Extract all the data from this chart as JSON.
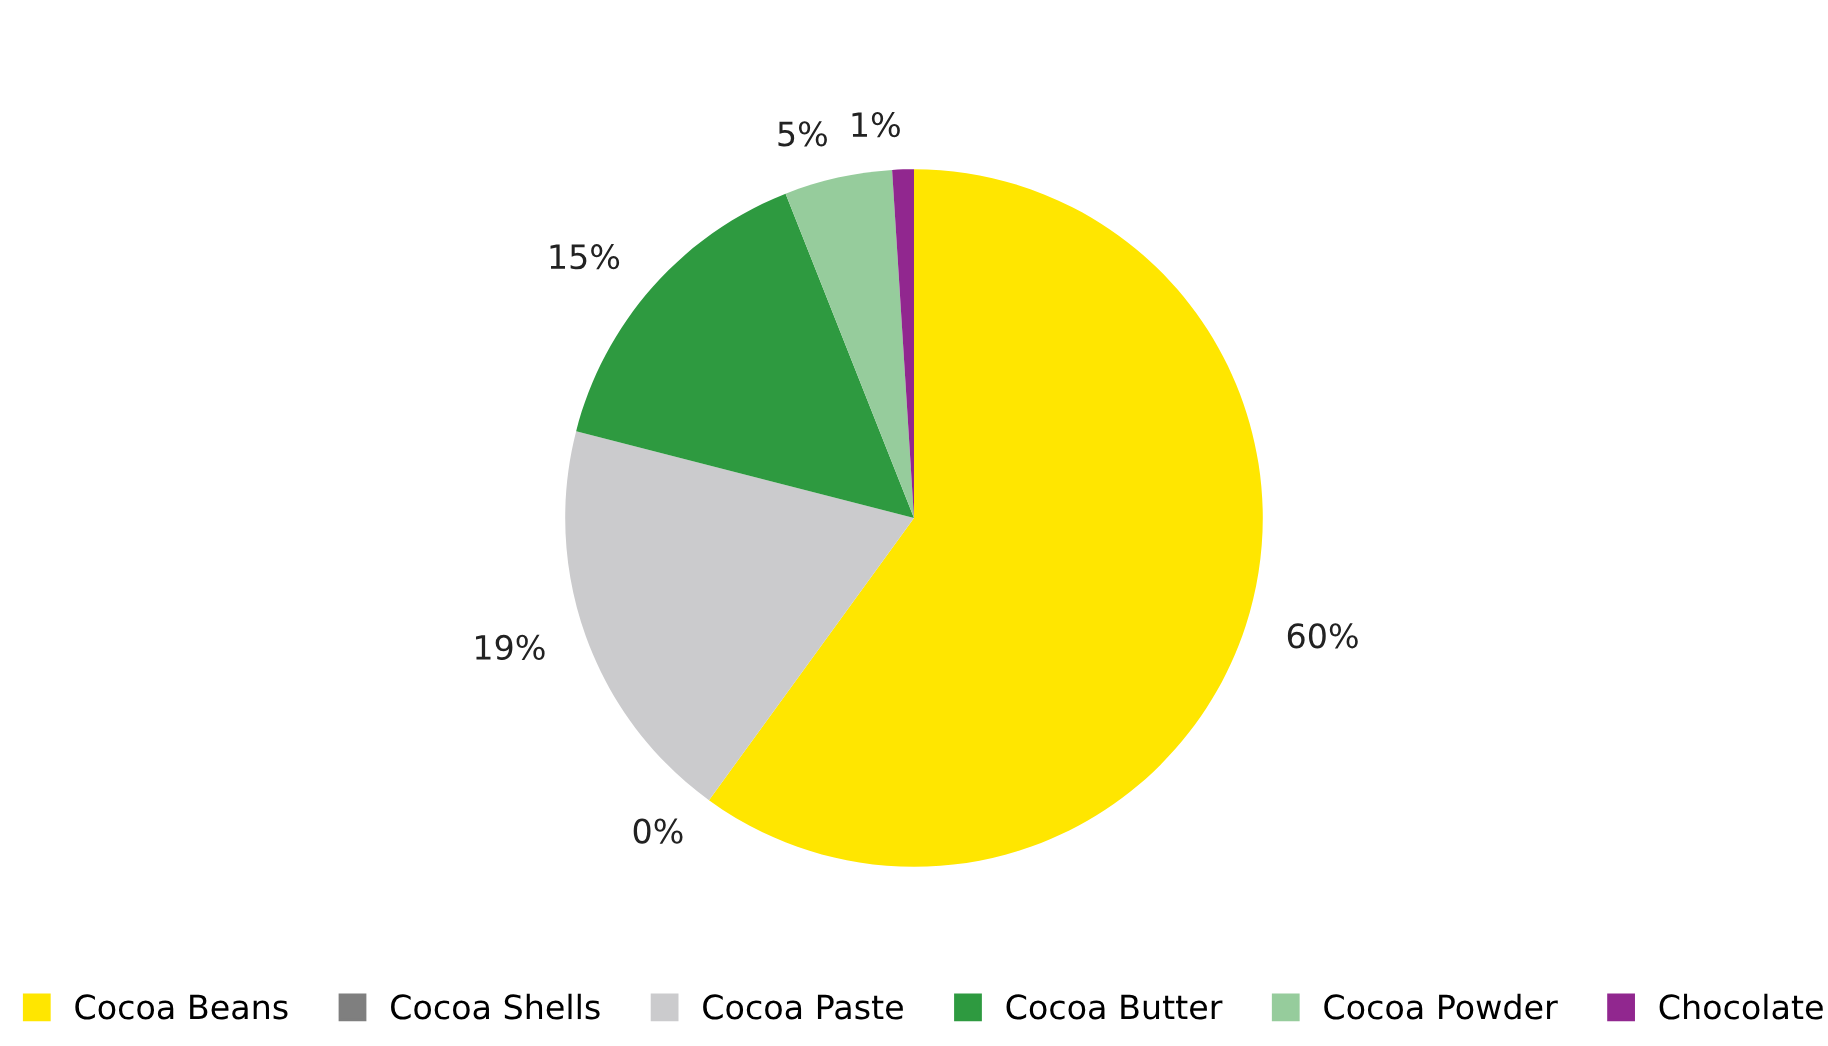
{
  "chart_data": {
    "type": "pie",
    "categories": [
      "Cocoa Beans",
      "Cocoa Shells",
      "Cocoa Paste",
      "Cocoa Butter",
      "Cocoa Powder",
      "Chocolate"
    ],
    "values": [
      60,
      0,
      19,
      15,
      5,
      1
    ],
    "value_labels": [
      "60%",
      "0%",
      "19%",
      "15%",
      "5%",
      "1%"
    ],
    "colors": [
      "#ffe600",
      "#7f7f7f",
      "#cbcbcd",
      "#2e9a40",
      "#96cc9c",
      "#91278f"
    ],
    "legend": "bottom"
  }
}
